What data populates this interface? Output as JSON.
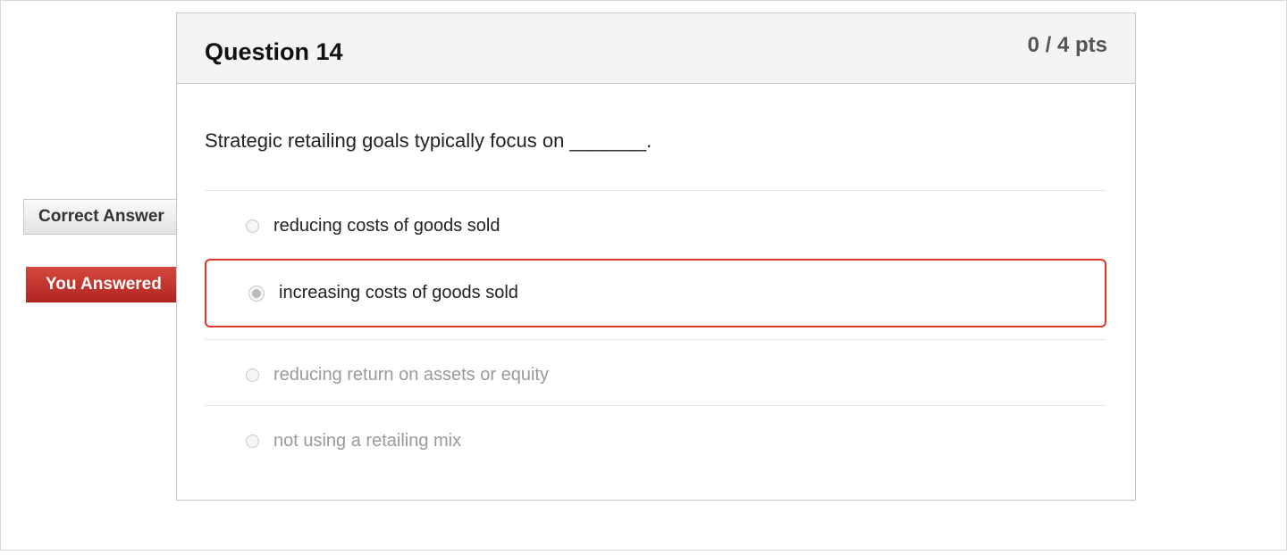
{
  "question": {
    "title": "Question 14",
    "points": "0 / 4 pts",
    "text": "Strategic retailing goals typically focus on _______."
  },
  "flags": {
    "correct_label": "Correct Answer",
    "you_answered_label": "You Answered",
    "wrong_color": "#c0342b"
  },
  "options": [
    {
      "label": "reducing costs of goods sold",
      "state": "correct"
    },
    {
      "label": "increasing costs of goods sold",
      "state": "selected-wrong"
    },
    {
      "label": "reducing return on assets or equity",
      "state": "none"
    },
    {
      "label": "not using a retailing mix",
      "state": "none"
    }
  ]
}
